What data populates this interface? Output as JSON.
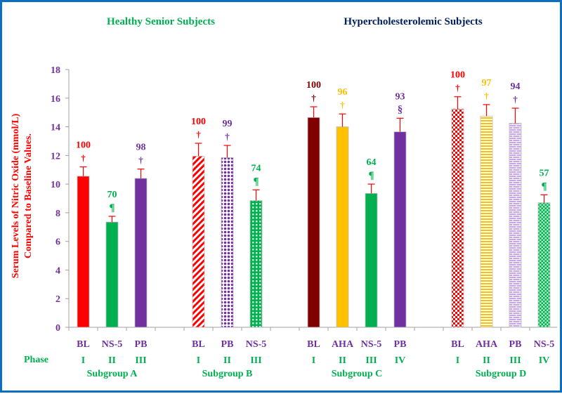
{
  "chart_data": {
    "type": "bar",
    "titles": [
      {
        "text": "Healthy  Senior  Subjects",
        "color": "#00b050"
      },
      {
        "text": "Hypercholesterolemic  Subjects",
        "color": "#002060"
      }
    ],
    "ylabel_lines": [
      "Serum Levels of Nitric Oxide (mmol/L)",
      "Compared to Baseline Values."
    ],
    "ylabel_color": "#ff0000",
    "ylim": [
      0,
      18
    ],
    "yticks": [
      "0",
      "2",
      "4",
      "6",
      "8",
      "10",
      "12",
      "14",
      "16",
      "18"
    ],
    "ytick_values": [
      0,
      2,
      4,
      6,
      8,
      10,
      12,
      14,
      16,
      18
    ],
    "phase_label": "Phase",
    "grid": false,
    "groups": [
      {
        "name": "Subgroup  A",
        "bars": [
          {
            "label": "BL",
            "phase": "I",
            "value": 10.55,
            "error": 0.65,
            "pct": "100",
            "mark": "†",
            "color": "#ff0000",
            "label_color": "#ff0000",
            "pattern": "solid"
          },
          {
            "label": "NS-5",
            "phase": "II",
            "value": 7.35,
            "error": 0.4,
            "pct": "70",
            "mark": "¶",
            "color": "#00b050",
            "label_color": "#00b050",
            "pattern": "solid"
          },
          {
            "label": "PB",
            "phase": "III",
            "value": 10.4,
            "error": 0.65,
            "pct": "98",
            "mark": "†",
            "color": "#7030a0",
            "label_color": "#7030a0",
            "pattern": "solid"
          }
        ]
      },
      {
        "name": "Subgroup  B",
        "bars": [
          {
            "label": "BL",
            "phase": "I",
            "value": 11.95,
            "error": 0.9,
            "pct": "100",
            "mark": "†",
            "color": "#ff0000",
            "label_color": "#ff0000",
            "pattern": "diagonal"
          },
          {
            "label": "PB",
            "phase": "II",
            "value": 11.85,
            "error": 0.85,
            "pct": "99",
            "mark": "†",
            "color": "#7030a0",
            "label_color": "#7030a0",
            "pattern": "dots"
          },
          {
            "label": "NS-5",
            "phase": "III",
            "value": 8.85,
            "error": 0.75,
            "pct": "74",
            "mark": "¶",
            "color": "#00b050",
            "label_color": "#00b050",
            "pattern": "grid"
          }
        ]
      },
      {
        "name": "Subgroup  C",
        "bars": [
          {
            "label": "BL",
            "phase": "I",
            "value": 14.65,
            "error": 0.75,
            "pct": "100",
            "mark": "†",
            "color": "#800000",
            "label_color": "#800000",
            "pattern": "solid"
          },
          {
            "label": "AHA",
            "phase": "II",
            "value": 14.0,
            "error": 0.9,
            "pct": "96",
            "mark": "†",
            "color": "#ffc000",
            "label_color": "#ffc000",
            "pattern": "solid"
          },
          {
            "label": "NS-5",
            "phase": "III",
            "value": 9.35,
            "error": 0.65,
            "pct": "64",
            "mark": "¶",
            "color": "#00b050",
            "label_color": "#00b050",
            "pattern": "solid"
          },
          {
            "label": "PB",
            "phase": "IV",
            "value": 13.65,
            "error": 0.95,
            "pct": "93",
            "mark": "§",
            "color": "#7030a0",
            "label_color": "#7030a0",
            "pattern": "solid"
          }
        ]
      },
      {
        "name": "Subgroup  D",
        "bars": [
          {
            "label": "BL",
            "phase": "I",
            "value": 15.25,
            "error": 0.85,
            "pct": "100",
            "mark": "†",
            "color": "#ff0000",
            "label_color": "#ff0000",
            "pattern": "checker"
          },
          {
            "label": "AHA",
            "phase": "II",
            "value": 14.75,
            "error": 0.8,
            "pct": "97",
            "mark": "†",
            "color": "#ffc000",
            "label_color": "#ffc000",
            "pattern": "hstripes"
          },
          {
            "label": "PB",
            "phase": "III",
            "value": 14.25,
            "error": 1.05,
            "pct": "94",
            "mark": "†",
            "color": "#7030a0",
            "label_color": "#7030a0",
            "pattern": "brick"
          },
          {
            "label": "NS-5",
            "phase": "IV",
            "value": 8.7,
            "error": 0.55,
            "pct": "57",
            "mark": "¶",
            "color": "#00b050",
            "label_color": "#00b050",
            "pattern": "checker"
          }
        ]
      }
    ],
    "tick_label_color": "#7030a0",
    "phase_color": "#00b050",
    "error_color": "#ff0000"
  }
}
